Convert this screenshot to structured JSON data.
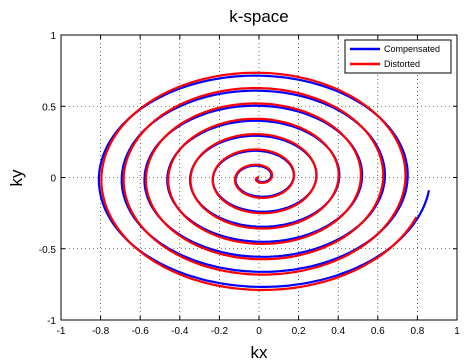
{
  "chart_data": {
    "type": "line",
    "title": "k-space",
    "xlabel": "kx",
    "ylabel": "ky",
    "xlim": [
      -1,
      1
    ],
    "ylim": [
      -1,
      1
    ],
    "xticks": [
      -1,
      -0.8,
      -0.6,
      -0.4,
      -0.2,
      0,
      0.2,
      0.4,
      0.6,
      0.8,
      1
    ],
    "yticks": [
      -1,
      -0.5,
      0,
      0.5,
      1
    ],
    "xtick_labels": [
      "-1",
      "-0.8",
      "-0.6",
      "-0.4",
      "-0.2",
      "0",
      "0.2",
      "0.4",
      "0.6",
      "0.8",
      "1"
    ],
    "ytick_labels": [
      "-1",
      "-0.5",
      "0",
      "0.5",
      "1"
    ],
    "grid": true,
    "legend_position": "top-right",
    "series": [
      {
        "name": "Compensated",
        "color": "#0000ff",
        "shape": "archimedean-spiral",
        "turns": 7.5,
        "max_radius": 0.9,
        "end_point": [
          0.88,
          -0.1
        ],
        "x_scale": 0.96,
        "y_scale": 0.88,
        "rotation_deg": 0
      },
      {
        "name": "Distorted",
        "color": "#ff0000",
        "shape": "archimedean-spiral",
        "turns": 7.5,
        "max_radius": 0.9,
        "end_point": [
          0.77,
          -0.28
        ],
        "x_scale": 0.94,
        "y_scale": 0.9,
        "rotation_deg": -14
      }
    ]
  }
}
